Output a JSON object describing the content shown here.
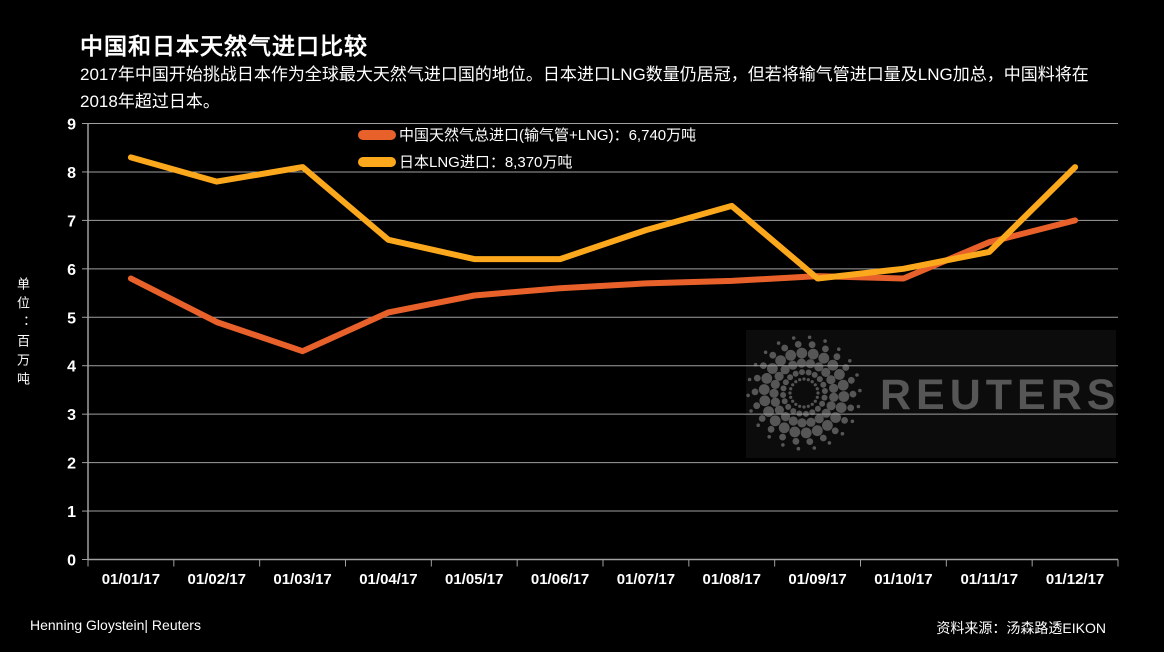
{
  "header": {
    "title": "中国和日本天然气进口比较",
    "subtitle": "2017年中国开始挑战日本作为全球最大天然气进口国的地位。日本进口LNG数量仍居冠，但若将输气管进口量及LNG加总，中国料将在2018年超过日本。"
  },
  "chart_data": {
    "type": "line",
    "categories": [
      "01/01/17",
      "01/02/17",
      "01/03/17",
      "01/04/17",
      "01/05/17",
      "01/06/17",
      "01/07/17",
      "01/08/17",
      "01/09/17",
      "01/10/17",
      "01/11/17",
      "01/12/17"
    ],
    "series": [
      {
        "name": "中国天然气总进口(输气管+LNG)",
        "label": "中国天然气总进口(输气管+LNG)：6,740万吨",
        "total": "6,740万吨",
        "color": "#e8612b",
        "values": [
          5.8,
          4.9,
          4.3,
          5.1,
          5.45,
          5.6,
          5.7,
          5.75,
          5.85,
          5.8,
          6.55,
          7.0
        ]
      },
      {
        "name": "日本LNG进口",
        "label": "日本LNG进口：8,370万吨",
        "total": "8,370万吨",
        "color": "#fba81c",
        "values": [
          8.3,
          7.8,
          8.1,
          6.6,
          6.2,
          6.2,
          6.8,
          7.3,
          5.8,
          6.0,
          6.35,
          8.1
        ]
      }
    ],
    "title": "中国和日本天然气进口比较",
    "xlabel": "",
    "ylabel": "单位：百万吨",
    "ylim": [
      0,
      9
    ],
    "ytick_step": 1,
    "grid": true,
    "legend_position": "top-center",
    "colors": {
      "background": "#000000",
      "gridline": "#a0a0a0",
      "axis_text": "#ffffff",
      "watermark": "#565656",
      "watermark_panel": "#0c0c0c"
    }
  },
  "watermark": {
    "text": "REUTERS",
    "logo": "reuters-globe-icon"
  },
  "footer": {
    "credit": "Henning Gloystein| Reuters",
    "source": "资料来源：汤森路透EIKON"
  }
}
